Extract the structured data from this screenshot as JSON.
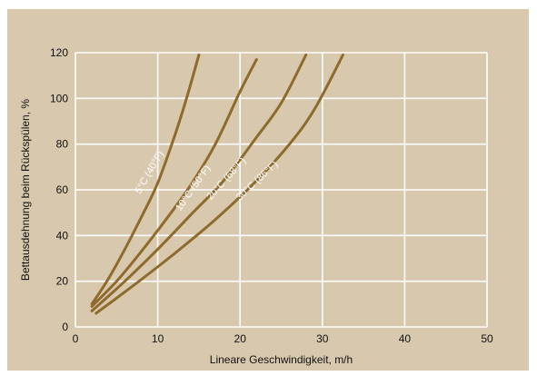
{
  "colors": {
    "background": "#d8c8ad",
    "grid": "#ffffff",
    "curve": "#8e6a2d",
    "text": "#111111"
  },
  "chart_data": {
    "type": "line",
    "xlabel": "Lineare Geschwindigkeit, m/h",
    "ylabel": "Bettausdehnung beim Rückspülen, %",
    "xlim": [
      0,
      50
    ],
    "ylim": [
      0,
      120
    ],
    "x_ticks": [
      0,
      10,
      20,
      30,
      40,
      50
    ],
    "y_ticks": [
      0,
      20,
      40,
      60,
      80,
      100,
      120
    ],
    "grid": true,
    "series": [
      {
        "name": "5°C (40°F)",
        "x": [
          2,
          4,
          6,
          8,
          10,
          12,
          13.5,
          15
        ],
        "values": [
          10,
          21,
          34,
          48,
          63,
          83,
          100,
          119
        ]
      },
      {
        "name": "10°C (50°F)",
        "x": [
          2,
          5,
          8,
          11,
          14,
          17,
          20,
          22
        ],
        "values": [
          9,
          20,
          33,
          47,
          62,
          80,
          103,
          117
        ]
      },
      {
        "name": "20°C (68°F)",
        "x": [
          2,
          6,
          10,
          14,
          18,
          22,
          25,
          28
        ],
        "values": [
          7,
          20,
          34,
          49,
          64,
          83,
          98,
          119
        ]
      },
      {
        "name": "30°C (86°F)",
        "x": [
          2.5,
          7,
          12,
          17,
          22,
          26,
          29,
          32.5
        ],
        "values": [
          6,
          18,
          32,
          47,
          64,
          80,
          95,
          119
        ]
      }
    ]
  }
}
